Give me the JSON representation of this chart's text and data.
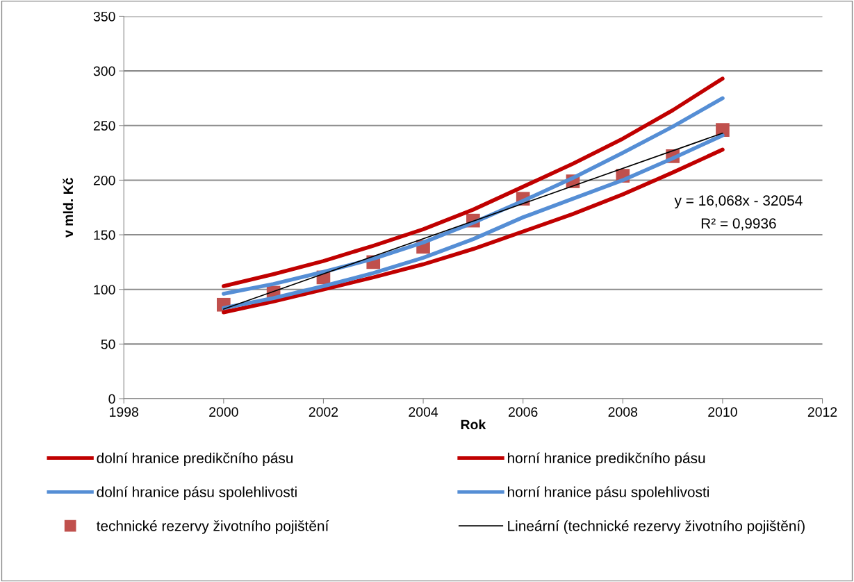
{
  "chart_data": {
    "type": "line",
    "xlabel": "Rok",
    "ylabel": "v mld. Kč",
    "x": [
      2000,
      2001,
      2002,
      2003,
      2004,
      2005,
      2006,
      2007,
      2008,
      2009,
      2010
    ],
    "series": [
      {
        "name": "dolní hranice predikčního pásu",
        "color": "#c00000",
        "values": [
          79,
          89,
          100,
          111,
          123,
          137,
          153,
          169,
          187,
          207,
          228
        ]
      },
      {
        "name": "horní hranice predikčního pásu",
        "color": "#c00000",
        "values": [
          103,
          114,
          126,
          140,
          155,
          173,
          194,
          215,
          238,
          264,
          293
        ]
      },
      {
        "name": "dolní hranice pásu spolehlivosti",
        "color": "#558ed5",
        "values": [
          83,
          92,
          103,
          115,
          129,
          146,
          166,
          183,
          200,
          220,
          241
        ]
      },
      {
        "name": "horní hranice pásu spolehlivosti",
        "color": "#558ed5",
        "values": [
          96,
          105,
          116,
          128,
          143,
          161,
          181,
          202,
          225,
          249,
          275
        ]
      },
      {
        "name": "technické rezervy životního pojištění",
        "type": "scatter",
        "marker": "square",
        "color": "#c0504d",
        "values": [
          86,
          97,
          111,
          125,
          139,
          163,
          183,
          199,
          204,
          222,
          246
        ]
      },
      {
        "name": "Lineární (technické rezervy životního pojištění)",
        "color": "#000000",
        "x": [
          2000,
          2010
        ],
        "values": [
          82,
          243
        ]
      }
    ],
    "xlim": [
      1998,
      2012
    ],
    "xticks": [
      1998,
      2000,
      2002,
      2004,
      2006,
      2008,
      2010,
      2012
    ],
    "ylim": [
      0,
      350
    ],
    "yticks": [
      0,
      50,
      100,
      150,
      200,
      250,
      300,
      350
    ],
    "grid": "y",
    "legend": "bottom",
    "annotations": [
      "y = 16,068x - 32054",
      "R² = 0,9936"
    ]
  }
}
